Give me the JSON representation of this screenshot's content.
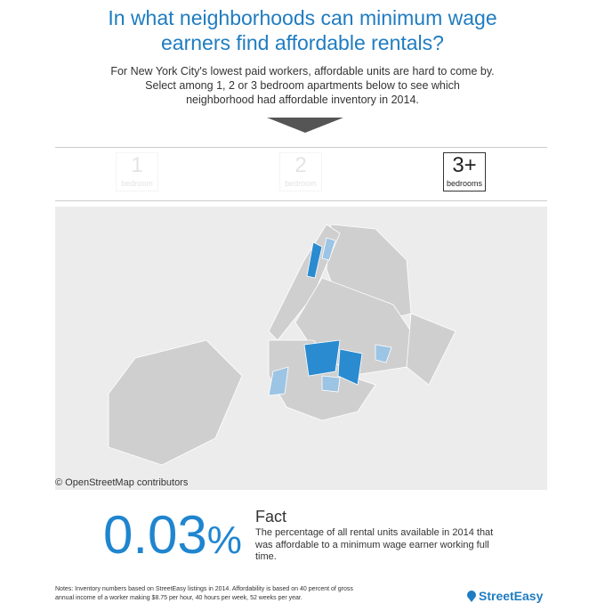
{
  "header": {
    "title": [
      "In what neighborhoods can minimum wage",
      "earners find affordable rentals?"
    ],
    "subtitle": [
      "For New York City's lowest paid workers, affordable units are hard to come by.",
      "Select among 1, 2 or 3 bedroom apartments below to see which",
      "neighborhood had affordable inventory in 2014."
    ]
  },
  "buttons": [
    {
      "number": "1",
      "label": "bedroom"
    },
    {
      "number": "2",
      "label": "bedroom"
    },
    {
      "number": "3+",
      "label": "bedrooms"
    }
  ],
  "map": {
    "attribution": "© OpenStreetMap contributors"
  },
  "fact": {
    "value": "0.03",
    "unit": "%",
    "heading": "Fact",
    "text": [
      "The percentage of all rental units available in 2014 that",
      "was affordable to a minimum wage earner working full",
      "time."
    ]
  },
  "notes": [
    "Notes: Inventory numbers based on StreetEasy listings in 2014. Affordability is based on 40 percent of gross",
    "annual income  of a worker making $8.75 per hour, 40 hours per week, 52 weeks per year."
  ],
  "logo": "StreetEasy"
}
